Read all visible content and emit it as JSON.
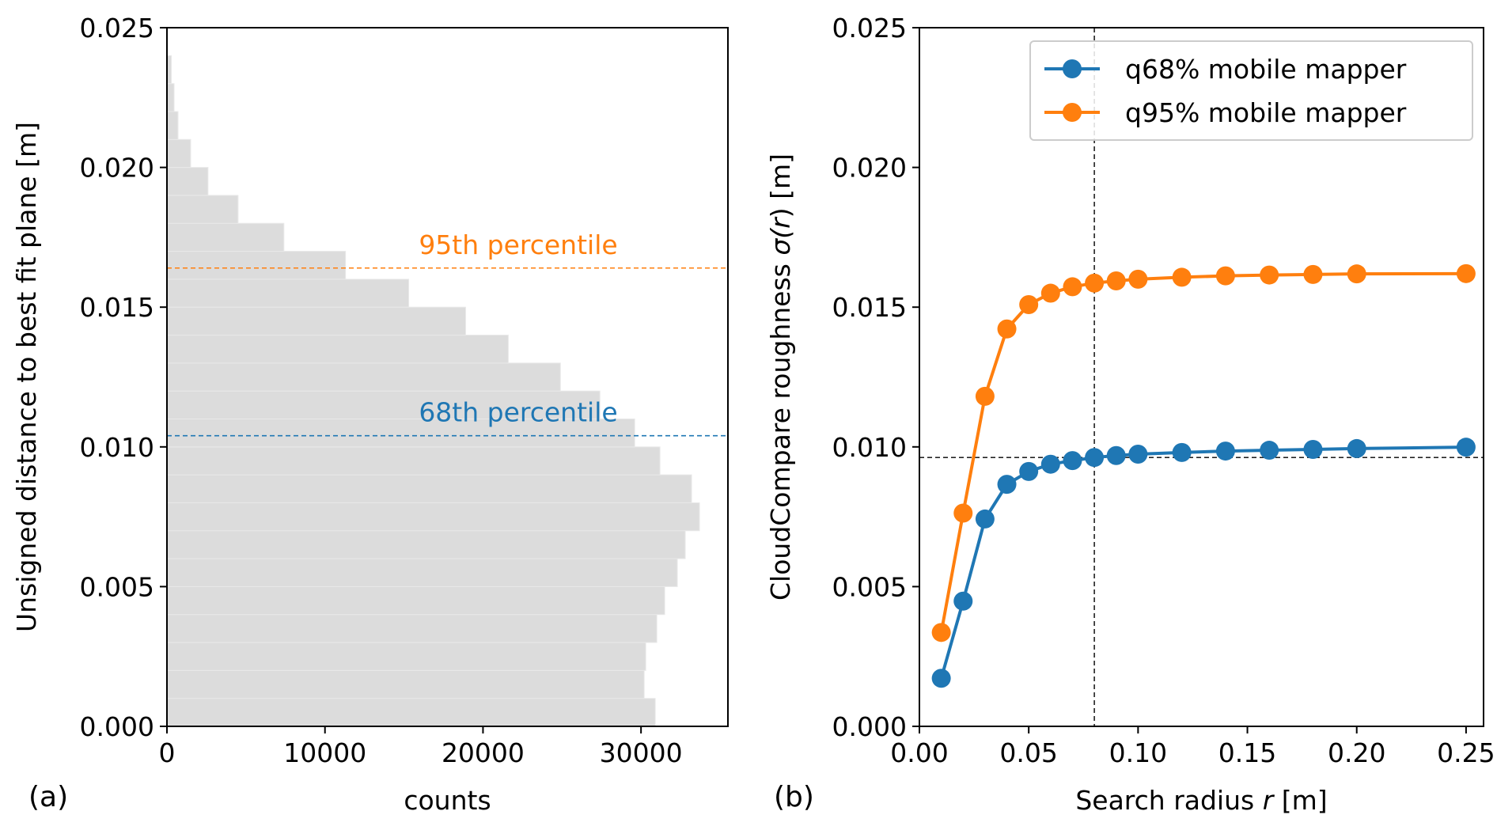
{
  "chart_data": [
    {
      "type": "bar",
      "orientation": "horizontal",
      "panel_label": "(a)",
      "xlabel": "counts",
      "ylabel": "Unsigned distance to best fit plane [m]",
      "xlim": [
        0,
        35500
      ],
      "ylim": [
        0,
        0.025
      ],
      "xticks": [
        0,
        10000,
        20000,
        30000
      ],
      "xtick_labels": [
        "0",
        "10000",
        "20000",
        "30000"
      ],
      "yticks": [
        0.0,
        0.005,
        0.01,
        0.015,
        0.02,
        0.025
      ],
      "ytick_labels": [
        "0.000",
        "0.005",
        "0.010",
        "0.015",
        "0.020",
        "0.025"
      ],
      "bin_width": 0.001,
      "bin_starts": [
        0.0,
        0.001,
        0.002,
        0.003,
        0.004,
        0.005,
        0.006,
        0.007,
        0.008,
        0.009,
        0.01,
        0.011,
        0.012,
        0.013,
        0.014,
        0.015,
        0.016,
        0.017,
        0.018,
        0.019,
        0.02,
        0.021,
        0.022,
        0.023,
        0.024
      ],
      "values": [
        30900,
        30200,
        30300,
        31000,
        31500,
        32300,
        32800,
        33700,
        33200,
        31200,
        29600,
        27400,
        24900,
        21600,
        18900,
        15300,
        11300,
        7400,
        4500,
        2600,
        1500,
        700,
        450,
        280,
        0
      ],
      "bar_color": "#dcdcdc",
      "reference_lines": [
        {
          "label": "95th percentile",
          "y": 0.0164,
          "color": "#ff7f0e"
        },
        {
          "label": "68th percentile",
          "y": 0.0104,
          "color": "#1f77b4"
        }
      ]
    },
    {
      "type": "line",
      "panel_label": "(b)",
      "xlabel_prefix": "Search radius ",
      "xlabel_var": "r",
      "xlabel_suffix": " [m]",
      "ylabel_prefix": "CloudCompare roughness ",
      "ylabel_sigma": "σ(",
      "ylabel_var": "r",
      "ylabel_suffix": ") [m]",
      "xlim": [
        0.0,
        0.258
      ],
      "ylim": [
        0,
        0.025
      ],
      "xticks": [
        0.0,
        0.05,
        0.1,
        0.15,
        0.2,
        0.25
      ],
      "xtick_labels": [
        "0.00",
        "0.05",
        "0.10",
        "0.15",
        "0.20",
        "0.25"
      ],
      "yticks": [
        0.0,
        0.005,
        0.01,
        0.015,
        0.02,
        0.025
      ],
      "ytick_labels": [
        "0.000",
        "0.005",
        "0.010",
        "0.015",
        "0.020",
        "0.025"
      ],
      "x": [
        0.01,
        0.02,
        0.03,
        0.04,
        0.05,
        0.06,
        0.07,
        0.08,
        0.09,
        0.1,
        0.12,
        0.14,
        0.16,
        0.18,
        0.2,
        0.25
      ],
      "series": [
        {
          "name": "q68% mobile mapper",
          "color": "#1f77b4",
          "values": [
            0.00172,
            0.00448,
            0.00742,
            0.00866,
            0.00912,
            0.00938,
            0.00951,
            0.00962,
            0.00969,
            0.00974,
            0.0098,
            0.00985,
            0.00988,
            0.00991,
            0.00994,
            0.00999
          ]
        },
        {
          "name": "q95% mobile mapper",
          "color": "#ff7f0e",
          "values": [
            0.00336,
            0.00763,
            0.01181,
            0.01422,
            0.01509,
            0.0155,
            0.01573,
            0.01586,
            0.01594,
            0.016,
            0.01607,
            0.01612,
            0.01615,
            0.01617,
            0.01619,
            0.0162
          ]
        }
      ],
      "reference_lines": [
        {
          "orientation": "vertical",
          "x": 0.08,
          "color": "#000000"
        },
        {
          "orientation": "horizontal",
          "y": 0.00962,
          "color": "#000000"
        }
      ],
      "legend_position": "top-right"
    }
  ]
}
